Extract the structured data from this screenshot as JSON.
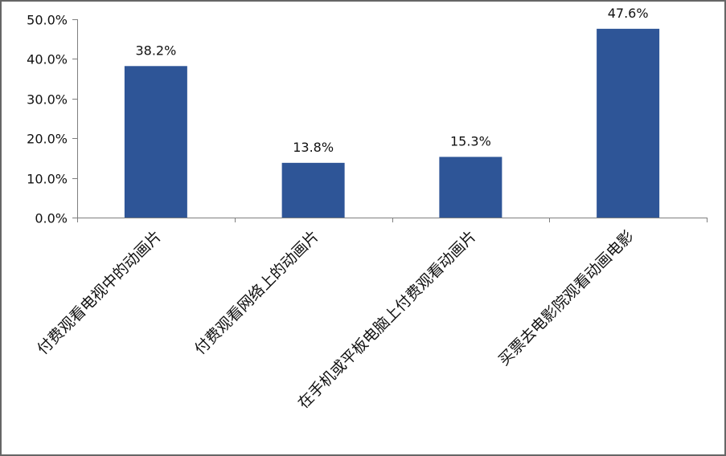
{
  "chart_data": {
    "type": "bar",
    "title": "",
    "xlabel": "",
    "ylabel": "",
    "categories": [
      "付费观看电视中的动画片",
      "付费观看网络上的动画片",
      "在手机或平板电脑上付费观看动画片",
      "买票去电影院观看动画电影"
    ],
    "values": [
      38.2,
      13.8,
      15.3,
      47.6
    ],
    "value_labels": [
      "38.2%",
      "13.8%",
      "15.3%",
      "47.6%"
    ],
    "ylim": [
      0,
      50
    ],
    "yticks": [
      0,
      10,
      20,
      30,
      40,
      50
    ],
    "ytick_labels": [
      "0.0%",
      "10.0%",
      "20.0%",
      "30.0%",
      "40.0%",
      "50.0%"
    ],
    "grid": false,
    "legend": null,
    "bar_color": "#2E5597"
  }
}
